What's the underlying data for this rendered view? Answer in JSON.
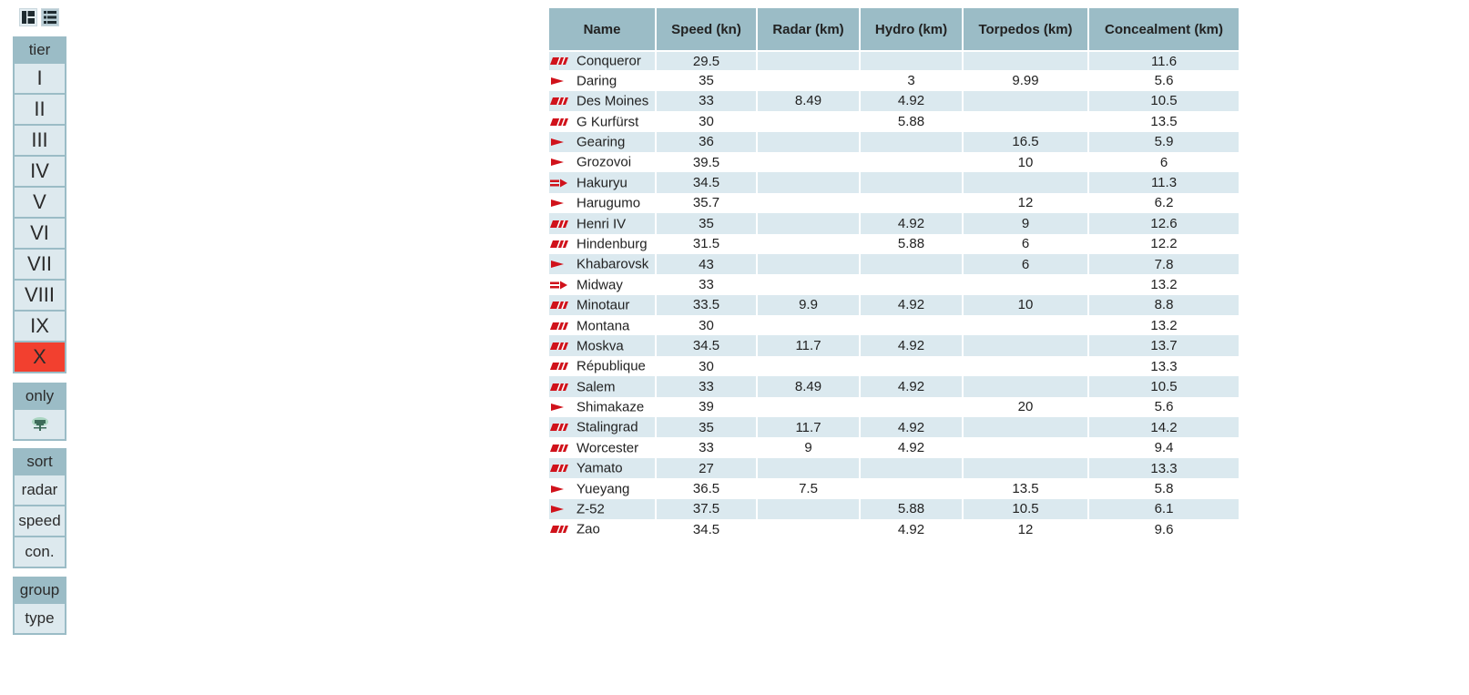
{
  "view_toggle": [
    {
      "name": "grid-view-icon",
      "active": false
    },
    {
      "name": "list-view-icon",
      "active": true
    }
  ],
  "tier_panel": {
    "title": "tier",
    "items": [
      "I",
      "II",
      "III",
      "IV",
      "V",
      "VI",
      "VII",
      "VIII",
      "IX",
      "X"
    ],
    "selected": "X"
  },
  "only_panel": {
    "title": "only",
    "items": [
      {
        "icon": "premium-ship-icon"
      }
    ]
  },
  "sort_panel": {
    "title": "sort",
    "items": [
      "radar",
      "speed",
      "con."
    ]
  },
  "group_panel": {
    "title": "group",
    "items": [
      "type"
    ]
  },
  "table": {
    "headers": [
      "Name",
      "Speed (kn)",
      "Radar (km)",
      "Hydro (km)",
      "Torpedos (km)",
      "Concealment (km)"
    ],
    "rows": [
      {
        "type": "battleship",
        "name": "Conqueror",
        "speed": "29.5",
        "radar": "",
        "hydro": "",
        "torpedos": "",
        "concealment": "11.6"
      },
      {
        "type": "destroyer",
        "name": "Daring",
        "speed": "35",
        "radar": "",
        "hydro": "3",
        "torpedos": "9.99",
        "concealment": "5.6"
      },
      {
        "type": "cruiser",
        "name": "Des Moines",
        "speed": "33",
        "radar": "8.49",
        "hydro": "4.92",
        "torpedos": "",
        "concealment": "10.5"
      },
      {
        "type": "battleship",
        "name": "G Kurfürst",
        "speed": "30",
        "radar": "",
        "hydro": "5.88",
        "torpedos": "",
        "concealment": "13.5"
      },
      {
        "type": "destroyer",
        "name": "Gearing",
        "speed": "36",
        "radar": "",
        "hydro": "",
        "torpedos": "16.5",
        "concealment": "5.9"
      },
      {
        "type": "destroyer",
        "name": "Grozovoi",
        "speed": "39.5",
        "radar": "",
        "hydro": "",
        "torpedos": "10",
        "concealment": "6"
      },
      {
        "type": "carrier",
        "name": "Hakuryu",
        "speed": "34.5",
        "radar": "",
        "hydro": "",
        "torpedos": "",
        "concealment": "11.3"
      },
      {
        "type": "destroyer",
        "name": "Harugumo",
        "speed": "35.7",
        "radar": "",
        "hydro": "",
        "torpedos": "12",
        "concealment": "6.2"
      },
      {
        "type": "cruiser",
        "name": "Henri IV",
        "speed": "35",
        "radar": "",
        "hydro": "4.92",
        "torpedos": "9",
        "concealment": "12.6"
      },
      {
        "type": "cruiser",
        "name": "Hindenburg",
        "speed": "31.5",
        "radar": "",
        "hydro": "5.88",
        "torpedos": "6",
        "concealment": "12.2"
      },
      {
        "type": "destroyer",
        "name": "Khabarovsk",
        "speed": "43",
        "radar": "",
        "hydro": "",
        "torpedos": "6",
        "concealment": "7.8"
      },
      {
        "type": "carrier",
        "name": "Midway",
        "speed": "33",
        "radar": "",
        "hydro": "",
        "torpedos": "",
        "concealment": "13.2"
      },
      {
        "type": "cruiser",
        "name": "Minotaur",
        "speed": "33.5",
        "radar": "9.9",
        "hydro": "4.92",
        "torpedos": "10",
        "concealment": "8.8"
      },
      {
        "type": "battleship",
        "name": "Montana",
        "speed": "30",
        "radar": "",
        "hydro": "",
        "torpedos": "",
        "concealment": "13.2"
      },
      {
        "type": "cruiser",
        "name": "Moskva",
        "speed": "34.5",
        "radar": "11.7",
        "hydro": "4.92",
        "torpedos": "",
        "concealment": "13.7"
      },
      {
        "type": "battleship",
        "name": "République",
        "speed": "30",
        "radar": "",
        "hydro": "",
        "torpedos": "",
        "concealment": "13.3"
      },
      {
        "type": "cruiser",
        "name": "Salem",
        "speed": "33",
        "radar": "8.49",
        "hydro": "4.92",
        "torpedos": "",
        "concealment": "10.5"
      },
      {
        "type": "destroyer",
        "name": "Shimakaze",
        "speed": "39",
        "radar": "",
        "hydro": "",
        "torpedos": "20",
        "concealment": "5.6"
      },
      {
        "type": "cruiser",
        "name": "Stalingrad",
        "speed": "35",
        "radar": "11.7",
        "hydro": "4.92",
        "torpedos": "",
        "concealment": "14.2"
      },
      {
        "type": "cruiser",
        "name": "Worcester",
        "speed": "33",
        "radar": "9",
        "hydro": "4.92",
        "torpedos": "",
        "concealment": "9.4"
      },
      {
        "type": "battleship",
        "name": "Yamato",
        "speed": "27",
        "radar": "",
        "hydro": "",
        "torpedos": "",
        "concealment": "13.3"
      },
      {
        "type": "destroyer",
        "name": "Yueyang",
        "speed": "36.5",
        "radar": "7.5",
        "hydro": "",
        "torpedos": "13.5",
        "concealment": "5.8"
      },
      {
        "type": "destroyer",
        "name": "Z-52",
        "speed": "37.5",
        "radar": "",
        "hydro": "5.88",
        "torpedos": "10.5",
        "concealment": "6.1"
      },
      {
        "type": "cruiser",
        "name": "Zao",
        "speed": "34.5",
        "radar": "",
        "hydro": "4.92",
        "torpedos": "12",
        "concealment": "9.6"
      }
    ]
  },
  "colors": {
    "panel": "#9bbcc6",
    "item": "#dde9ee",
    "selected": "#f2402f",
    "row_alt": "#dbe9ef",
    "flag": "#d0121b"
  }
}
